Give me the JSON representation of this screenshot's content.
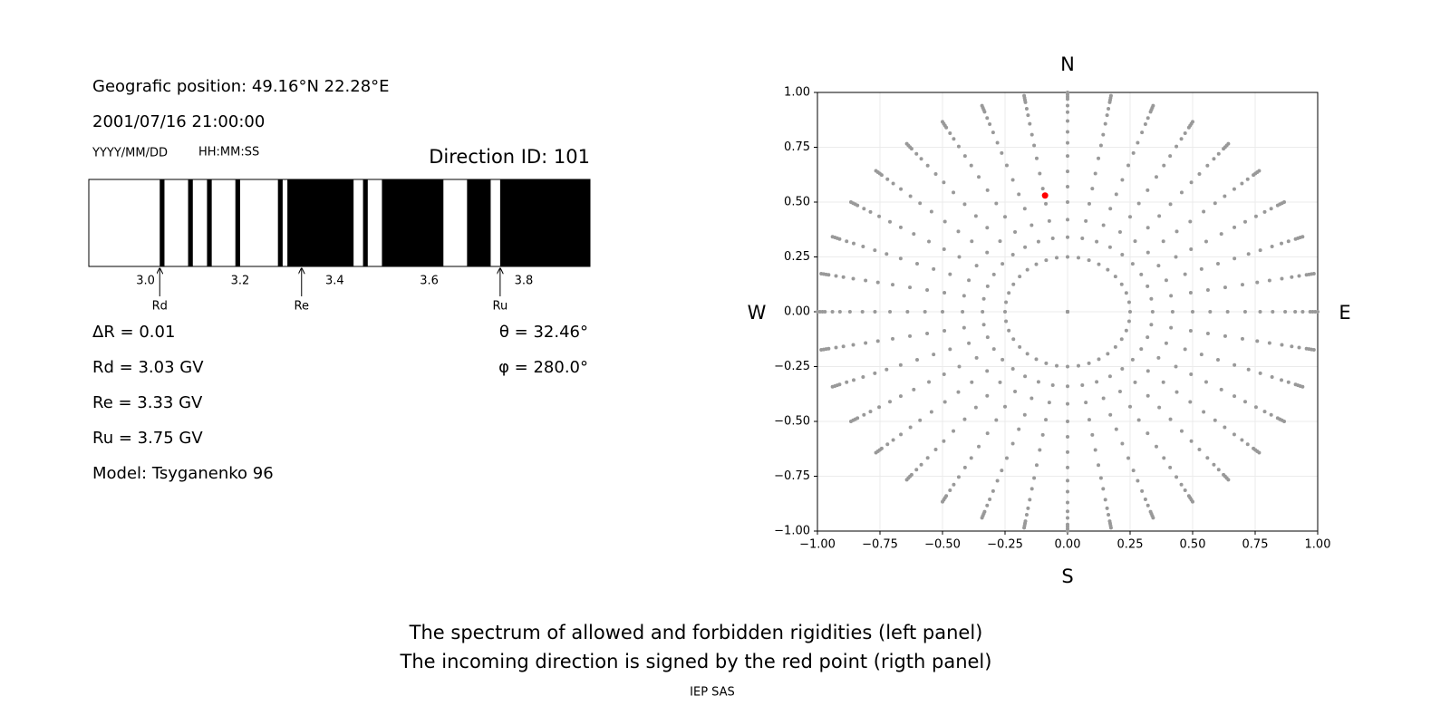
{
  "info": {
    "position": "Geografic position: 49.16°N 22.28°E",
    "datetime": "2001/07/16 21:00:00",
    "date_format": "YYYY/MM/DD",
    "time_format": "HH:MM:SS",
    "direction_id": "Direction ID: 101",
    "delta_r": "ΔR = 0.01",
    "rd": "Rd = 3.03 GV",
    "re": "Re = 3.33 GV",
    "ru": "Ru = 3.75 GV",
    "model": "Model: Tsyganenko 96",
    "theta": "θ = 32.46°",
    "phi": "φ = 280.0°"
  },
  "chart_data": [
    {
      "type": "spectrum",
      "xlim": [
        2.88,
        3.94
      ],
      "xticks": [
        {
          "value": 3.0,
          "label": "3.0"
        },
        3.2,
        3.4,
        3.6,
        3.8
      ],
      "color": "#000000",
      "forbidden": [
        [
          3.03,
          3.04
        ],
        [
          3.09,
          3.1
        ],
        [
          3.13,
          3.14
        ],
        [
          3.19,
          3.2
        ],
        [
          3.28,
          3.29
        ],
        [
          3.3,
          3.44
        ],
        [
          3.46,
          3.47
        ],
        [
          3.5,
          3.63
        ],
        [
          3.68,
          3.73
        ],
        [
          3.75,
          3.94
        ]
      ],
      "markers": [
        {
          "label": "Rd",
          "value": 3.03
        },
        {
          "label": "Re",
          "value": 3.33
        },
        {
          "label": "Ru",
          "value": 3.75
        }
      ]
    },
    {
      "type": "scatter",
      "xlim": [
        -1,
        1
      ],
      "ylim": [
        -1,
        1
      ],
      "grid": true,
      "xticks": [
        {
          "value": -1,
          "label": "−1.00"
        },
        {
          "value": -0.75,
          "label": "−0.75"
        },
        {
          "value": -0.5,
          "label": "−0.50"
        },
        {
          "value": -0.25,
          "label": "−0.25"
        },
        {
          "value": 0,
          "label": "0.00"
        },
        {
          "value": 0.25,
          "label": "0.25"
        },
        {
          "value": 0.5,
          "label": "0.50"
        },
        {
          "value": 0.75,
          "label": "0.75"
        },
        {
          "value": 1,
          "label": "1.00"
        }
      ],
      "yticks": [
        {
          "value": -1,
          "label": "−1.00"
        },
        {
          "value": -0.75,
          "label": "−0.75"
        },
        {
          "value": -0.5,
          "label": "−0.50"
        },
        {
          "value": -0.25,
          "label": "−0.25"
        },
        {
          "value": 0,
          "label": "0.00"
        },
        {
          "value": 0.25,
          "label": "0.25"
        },
        {
          "value": 0.5,
          "label": "0.50"
        },
        {
          "value": 0.75,
          "label": "0.75"
        },
        {
          "value": 1,
          "label": "1.00"
        }
      ],
      "compass": {
        "north": "N",
        "south": "S",
        "west": "W",
        "east": "E"
      },
      "series": [
        {
          "color": "#999999",
          "azimuths": [
            0,
            10,
            20,
            30,
            40,
            50,
            60,
            70,
            80,
            90,
            100,
            110,
            120,
            130,
            140,
            150,
            160,
            170,
            180,
            190,
            200,
            210,
            220,
            230,
            240,
            250,
            260,
            270,
            280,
            290,
            300,
            310,
            320,
            330,
            340,
            350
          ],
          "radii": [
            0,
            0.25,
            0.34,
            0.42,
            0.5,
            0.57,
            0.64,
            0.71,
            0.77,
            0.82,
            0.87,
            0.91,
            0.94,
            0.97,
            0.98,
            0.99,
            1.0
          ]
        },
        {
          "color": "#ff0000",
          "x": [
            -0.09
          ],
          "y": [
            0.53
          ]
        }
      ]
    }
  ],
  "caption": [
    "The spectrum of allowed and forbidden rigidities (left panel)",
    "The incoming direction is signed by the red point (rigth panel)"
  ],
  "footer": "IEP SAS"
}
